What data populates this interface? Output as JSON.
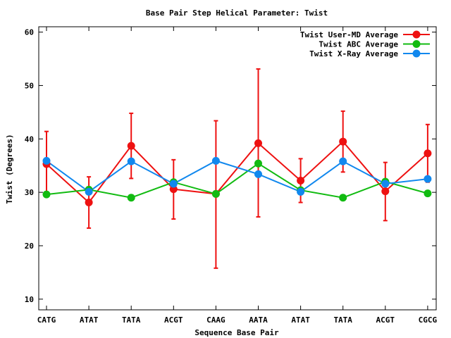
{
  "chart_data": {
    "type": "line",
    "title": "Base Pair Step Helical Parameter: Twist",
    "xlabel": "Sequence Base Pair",
    "ylabel": "Twist (Degrees)",
    "ylim": [
      8,
      61
    ],
    "yticks": [
      10,
      20,
      30,
      40,
      50,
      60
    ],
    "categories": [
      "CATG",
      "ATAT",
      "TATA",
      "ACGT",
      "CAAG",
      "AATA",
      "ATAT",
      "TATA",
      "ACGT",
      "CGCG"
    ],
    "grid": false,
    "legend_position": "top-right",
    "series": [
      {
        "name": "Twist User-MD Average",
        "color": "#ee1111",
        "values": [
          35.3,
          28.1,
          38.7,
          30.6,
          29.7,
          39.2,
          32.2,
          39.5,
          30.2,
          37.3
        ],
        "error_low": [
          29.2,
          23.3,
          32.6,
          25.0,
          15.8,
          25.4,
          28.1,
          33.8,
          24.7,
          31.9
        ],
        "error_high": [
          41.4,
          32.9,
          44.8,
          36.1,
          43.4,
          53.1,
          36.3,
          45.2,
          35.6,
          42.7
        ]
      },
      {
        "name": "Twist ABC Average",
        "color": "#11bb11",
        "values": [
          29.6,
          30.5,
          29.0,
          31.9,
          29.7,
          35.4,
          30.4,
          29.0,
          32.0,
          29.8
        ]
      },
      {
        "name": "Twist X-Ray Average",
        "color": "#1188ee",
        "values": [
          35.9,
          30.1,
          35.8,
          31.6,
          35.9,
          33.4,
          30.1,
          35.8,
          31.6,
          32.5
        ]
      }
    ]
  }
}
